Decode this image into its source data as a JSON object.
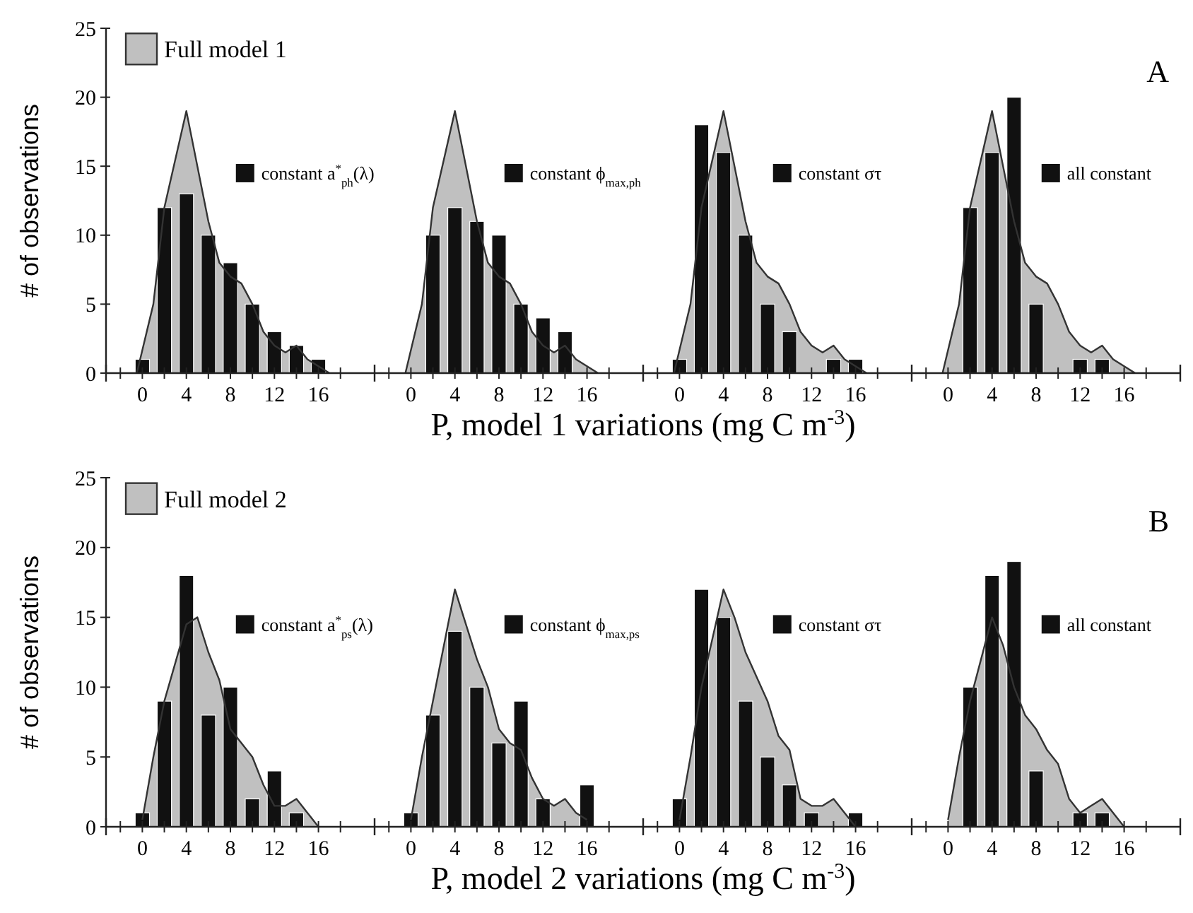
{
  "chart_data": [
    {
      "type": "bar",
      "xlabel": "P, model 1 variations (mg C m$^{-3}$)",
      "ylabel": "# of observations",
      "legend": "top",
      "xlim": [
        -3.3,
        21.1
      ],
      "ylim": [
        0,
        25
      ],
      "yticks": [
        0,
        5,
        10,
        15,
        20,
        25
      ],
      "xticks": [
        {
          "value": -2,
          "label": null
        },
        0,
        {
          "value": 2,
          "label": null
        },
        4,
        {
          "value": 6,
          "label": null
        },
        8,
        {
          "value": 10,
          "label": null
        },
        12,
        {
          "value": 14,
          "label": null
        },
        16,
        {
          "value": 18,
          "label": null
        }
      ],
      "series": [
        {
          "type": "area",
          "name": "Full model 1",
          "color": "#c0c0c0",
          "x": [
            -0.5,
            1,
            2,
            4,
            6,
            7,
            8,
            9,
            10,
            11,
            12,
            13,
            14,
            15,
            16,
            17
          ],
          "values": [
            0,
            5,
            12,
            19,
            11,
            8,
            7,
            6.5,
            5,
            3,
            2,
            1.5,
            2,
            1,
            0.5,
            0
          ]
        },
        {
          "type": "bar",
          "name": "constant a$^{*}$$_{ph}$(λ)",
          "color": "#111111",
          "x": [
            0,
            2,
            4,
            6,
            8,
            10,
            12,
            14,
            16
          ],
          "values": [
            1,
            12,
            13,
            10,
            8,
            5,
            3,
            2,
            1
          ]
        }
      ]
    },
    {
      "type": "bar",
      "legend": "top",
      "tick_labels": "x",
      "xlim": [
        -3.3,
        21.1
      ],
      "ylim": [
        0,
        25
      ],
      "xticks": [
        {
          "value": -2,
          "label": null
        },
        0,
        {
          "value": 2,
          "label": null
        },
        4,
        {
          "value": 6,
          "label": null
        },
        8,
        {
          "value": 10,
          "label": null
        },
        12,
        {
          "value": 14,
          "label": null
        },
        16,
        {
          "value": 18,
          "label": null
        }
      ],
      "series": [
        {
          "type": "area",
          "color": "#c0c0c0",
          "x": [
            -0.5,
            1,
            2,
            4,
            6,
            7,
            8,
            9,
            10,
            11,
            12,
            13,
            14,
            15,
            16,
            17
          ],
          "values": [
            0,
            5,
            12,
            19,
            11,
            8,
            7,
            6.5,
            5,
            3,
            2,
            1.5,
            2,
            1,
            0.5,
            0
          ]
        },
        {
          "type": "bar",
          "name": "constant ϕ$_{max,ph}$",
          "color": "#111111",
          "x": [
            2,
            4,
            6,
            8,
            10,
            12,
            14
          ],
          "values": [
            10,
            12,
            11,
            10,
            5,
            4,
            3
          ]
        }
      ]
    },
    {
      "type": "bar",
      "legend": "top",
      "tick_labels": "x",
      "xlim": [
        -3.3,
        21.1
      ],
      "ylim": [
        0,
        25
      ],
      "xticks": [
        {
          "value": -2,
          "label": null
        },
        0,
        {
          "value": 2,
          "label": null
        },
        4,
        {
          "value": 6,
          "label": null
        },
        8,
        {
          "value": 10,
          "label": null
        },
        12,
        {
          "value": 14,
          "label": null
        },
        16,
        {
          "value": 18,
          "label": null
        }
      ],
      "series": [
        {
          "type": "area",
          "color": "#c0c0c0",
          "x": [
            -0.5,
            1,
            2,
            4,
            6,
            7,
            8,
            9,
            10,
            11,
            12,
            13,
            14,
            15,
            16,
            17
          ],
          "values": [
            0,
            5,
            12,
            19,
            11,
            8,
            7,
            6.5,
            5,
            3,
            2,
            1.5,
            2,
            1,
            0.5,
            0
          ]
        },
        {
          "type": "bar",
          "name": "constant στ",
          "color": "#111111",
          "x": [
            0,
            2,
            4,
            6,
            8,
            10,
            14,
            16
          ],
          "values": [
            1,
            18,
            16,
            10,
            5,
            3,
            1,
            1
          ]
        }
      ]
    },
    {
      "type": "bar",
      "title": "A",
      "legend": "top",
      "tick_labels": "x",
      "xlim": [
        -3.3,
        21.1
      ],
      "ylim": [
        0,
        25
      ],
      "xticks": [
        {
          "value": -2,
          "label": null
        },
        0,
        {
          "value": 2,
          "label": null
        },
        4,
        {
          "value": 6,
          "label": null
        },
        8,
        {
          "value": 10,
          "label": null
        },
        12,
        {
          "value": 14,
          "label": null
        },
        16,
        {
          "value": 18,
          "label": null
        }
      ],
      "series": [
        {
          "type": "area",
          "color": "#c0c0c0",
          "x": [
            -0.5,
            1,
            2,
            4,
            6,
            7,
            8,
            9,
            10,
            11,
            12,
            13,
            14,
            15,
            16,
            17
          ],
          "values": [
            0,
            5,
            12,
            19,
            11,
            8,
            7,
            6.5,
            5,
            3,
            2,
            1.5,
            2,
            1,
            0.5,
            0
          ]
        },
        {
          "type": "bar",
          "name": "all constant",
          "color": "#111111",
          "x": [
            2,
            4,
            6,
            8,
            12,
            14
          ],
          "values": [
            12,
            16,
            20,
            5,
            1,
            1
          ]
        }
      ]
    },
    {
      "type": "bar",
      "xlabel": "P, model 2 variations (mg C m$^{-3}$)",
      "ylabel": "# of observations",
      "legend": "top",
      "xlim": [
        -3.3,
        21.1
      ],
      "ylim": [
        0,
        25
      ],
      "yticks": [
        0,
        5,
        10,
        15,
        20,
        25
      ],
      "xticks": [
        {
          "value": -2,
          "label": null
        },
        0,
        {
          "value": 2,
          "label": null
        },
        4,
        {
          "value": 6,
          "label": null
        },
        8,
        {
          "value": 10,
          "label": null
        },
        12,
        {
          "value": 14,
          "label": null
        },
        16,
        {
          "value": 18,
          "label": null
        }
      ],
      "series": [
        {
          "type": "area",
          "name": "Full model 2",
          "color": "#c0c0c0",
          "x": [
            0,
            1,
            2,
            4,
            5,
            6,
            7,
            8,
            9,
            10,
            11,
            12,
            13,
            14,
            15,
            16
          ],
          "values": [
            0.5,
            5,
            9,
            14.5,
            15,
            12.5,
            10.5,
            7,
            6,
            5,
            3,
            1.5,
            1.5,
            2,
            1,
            0
          ]
        },
        {
          "type": "bar",
          "name": "constant a$^{*}$$_{ps}$(λ)",
          "color": "#111111",
          "x": [
            0,
            2,
            4,
            6,
            8,
            10,
            12,
            14
          ],
          "values": [
            1,
            9,
            18,
            8,
            10,
            2,
            4,
            1
          ]
        }
      ]
    },
    {
      "type": "bar",
      "legend": "top",
      "tick_labels": "x",
      "xlim": [
        -3.3,
        21.1
      ],
      "ylim": [
        0,
        25
      ],
      "xticks": [
        {
          "value": -2,
          "label": null
        },
        0,
        {
          "value": 2,
          "label": null
        },
        4,
        {
          "value": 6,
          "label": null
        },
        8,
        {
          "value": 10,
          "label": null
        },
        12,
        {
          "value": 14,
          "label": null
        },
        16,
        {
          "value": 18,
          "label": null
        }
      ],
      "series": [
        {
          "type": "area",
          "color": "#c0c0c0",
          "x": [
            0,
            1,
            2,
            4,
            6,
            7,
            8,
            9,
            10,
            11,
            12,
            13,
            14,
            15,
            16
          ],
          "values": [
            0.5,
            5,
            9,
            17,
            12,
            10,
            7,
            6,
            5.5,
            3.5,
            2,
            1.5,
            2,
            1,
            0.5
          ]
        },
        {
          "type": "bar",
          "name": "constant ϕ$_{max,ps}$",
          "color": "#111111",
          "x": [
            0,
            2,
            4,
            6,
            8,
            10,
            12,
            16
          ],
          "values": [
            1,
            8,
            14,
            10,
            6,
            9,
            2,
            3
          ]
        }
      ]
    },
    {
      "type": "bar",
      "legend": "top",
      "tick_labels": "x",
      "xlim": [
        -3.3,
        21.1
      ],
      "ylim": [
        0,
        25
      ],
      "xticks": [
        {
          "value": -2,
          "label": null
        },
        0,
        {
          "value": 2,
          "label": null
        },
        4,
        {
          "value": 6,
          "label": null
        },
        8,
        {
          "value": 10,
          "label": null
        },
        12,
        {
          "value": 14,
          "label": null
        },
        16,
        {
          "value": 18,
          "label": null
        }
      ],
      "series": [
        {
          "type": "area",
          "color": "#c0c0c0",
          "x": [
            0,
            1,
            2,
            4,
            5,
            6,
            8,
            9,
            10,
            11,
            12,
            13,
            14,
            15,
            16
          ],
          "values": [
            0.5,
            5,
            10,
            17,
            15,
            12.5,
            9,
            6.5,
            5.5,
            2,
            1.5,
            1.5,
            2,
            1,
            0
          ]
        },
        {
          "type": "bar",
          "name": "constant στ",
          "color": "#111111",
          "x": [
            0,
            2,
            4,
            6,
            8,
            10,
            12,
            16
          ],
          "values": [
            2,
            17,
            15,
            9,
            5,
            3,
            1,
            1
          ]
        }
      ]
    },
    {
      "type": "bar",
      "title": "B",
      "legend": "top",
      "tick_labels": "x",
      "xlim": [
        -3.3,
        21.1
      ],
      "ylim": [
        0,
        25
      ],
      "xticks": [
        {
          "value": -2,
          "label": null
        },
        0,
        {
          "value": 2,
          "label": null
        },
        4,
        {
          "value": 6,
          "label": null
        },
        8,
        {
          "value": 10,
          "label": null
        },
        12,
        {
          "value": 14,
          "label": null
        },
        16,
        {
          "value": 18,
          "label": null
        }
      ],
      "series": [
        {
          "type": "area",
          "color": "#c0c0c0",
          "x": [
            0,
            1,
            2,
            4,
            5,
            6,
            7,
            8,
            9,
            10,
            11,
            12,
            13,
            14,
            15,
            16
          ],
          "values": [
            0.5,
            5,
            9,
            15,
            13,
            10,
            8,
            7,
            5.5,
            4.5,
            2,
            1,
            1.5,
            2,
            1,
            0
          ]
        },
        {
          "type": "bar",
          "name": "all constant",
          "color": "#111111",
          "x": [
            2,
            4,
            6,
            8,
            12,
            14
          ],
          "values": [
            10,
            18,
            19,
            4,
            1,
            1
          ]
        }
      ]
    }
  ]
}
